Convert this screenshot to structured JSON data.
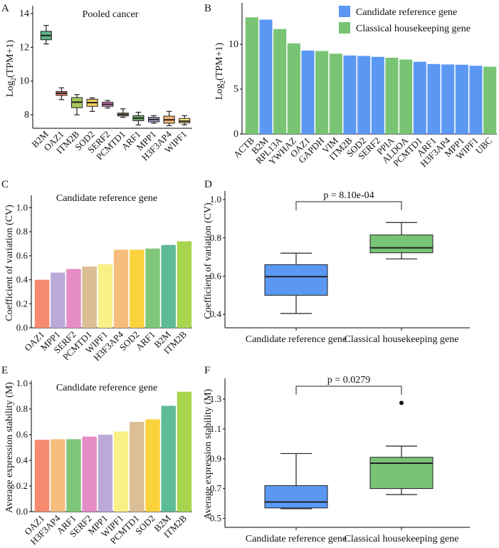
{
  "chart_data": [
    {
      "panel": "A",
      "type": "box",
      "title": "Pooled cancer",
      "ylabel_base": "Log",
      "ylabel_sub": "2",
      "ylabel_tail": "(TPM+1)",
      "ylim": [
        7.2,
        14.3
      ],
      "yticks": [
        8,
        10,
        12,
        14
      ],
      "boxes": [
        {
          "name": "B2M",
          "color": "#5CB287",
          "whisker_low": 12.2,
          "q1": 12.45,
          "median": 12.7,
          "q3": 12.95,
          "whisker_high": 13.3
        },
        {
          "name": "OAZ1",
          "color": "#F47E6E",
          "whisker_low": 8.9,
          "q1": 9.15,
          "median": 9.28,
          "q3": 9.38,
          "whisker_high": 9.6
        },
        {
          "name": "ITM2B",
          "color": "#A4C95A",
          "whisker_low": 8.0,
          "q1": 8.42,
          "median": 8.75,
          "q3": 9.02,
          "whisker_high": 9.2
        },
        {
          "name": "SOD2",
          "color": "#F5D05C",
          "whisker_low": 8.2,
          "q1": 8.5,
          "median": 8.72,
          "q3": 8.92,
          "whisker_high": 9.0
        },
        {
          "name": "SERF2",
          "color": "#E27FC1",
          "whisker_low": 8.4,
          "q1": 8.5,
          "median": 8.62,
          "q3": 8.75,
          "whisker_high": 8.85
        },
        {
          "name": "PCMTD1",
          "color": "#D4B58C",
          "whisker_low": 7.85,
          "q1": 7.93,
          "median": 8.02,
          "q3": 8.1,
          "whisker_high": 8.35
        },
        {
          "name": "ARF1",
          "color": "#73B36B",
          "whisker_low": 7.4,
          "q1": 7.65,
          "median": 7.8,
          "q3": 7.95,
          "whisker_high": 8.15
        },
        {
          "name": "MPP1",
          "color": "#B3A5D6",
          "whisker_low": 7.5,
          "q1": 7.58,
          "median": 7.72,
          "q3": 7.85,
          "whisker_high": 7.95
        },
        {
          "name": "H3F3AP4",
          "color": "#F5B56F",
          "whisker_low": 7.35,
          "q1": 7.5,
          "median": 7.7,
          "q3": 7.92,
          "whisker_high": 8.2
        },
        {
          "name": "WIPF1",
          "color": "#F7E77A",
          "whisker_low": 7.4,
          "q1": 7.52,
          "median": 7.62,
          "q3": 7.78,
          "whisker_high": 7.95
        }
      ]
    },
    {
      "panel": "B",
      "type": "bar",
      "ylabel_base": "Log",
      "ylabel_sub": "2",
      "ylabel_tail": "(TPM+1)",
      "ylim": [
        0,
        14.3
      ],
      "yticks": [
        0,
        5,
        10
      ],
      "legend": [
        {
          "label": "Candidate reference gene",
          "color": "#5B98F4"
        },
        {
          "label": "Classical housekeeping gene",
          "color": "#78C474"
        }
      ],
      "bars": [
        {
          "name": "ACTB",
          "value": 13.0,
          "group": 1
        },
        {
          "name": "B2M",
          "value": 12.75,
          "group": 0
        },
        {
          "name": "RPL13A",
          "value": 11.7,
          "group": 1
        },
        {
          "name": "YWHAZ",
          "value": 10.1,
          "group": 1
        },
        {
          "name": "OAZ1",
          "value": 9.3,
          "group": 0
        },
        {
          "name": "GAPDH",
          "value": 9.25,
          "group": 1
        },
        {
          "name": "VIM",
          "value": 8.95,
          "group": 1
        },
        {
          "name": "ITM2B",
          "value": 8.75,
          "group": 0
        },
        {
          "name": "SOD2",
          "value": 8.7,
          "group": 0
        },
        {
          "name": "SERF2",
          "value": 8.6,
          "group": 0
        },
        {
          "name": "PPIA",
          "value": 8.5,
          "group": 1
        },
        {
          "name": "ALDOA",
          "value": 8.3,
          "group": 1
        },
        {
          "name": "PCMTD1",
          "value": 8.05,
          "group": 0
        },
        {
          "name": "ARF1",
          "value": 7.8,
          "group": 0
        },
        {
          "name": "H3F3AP4",
          "value": 7.75,
          "group": 0
        },
        {
          "name": "MPP1",
          "value": 7.72,
          "group": 0
        },
        {
          "name": "WIPF1",
          "value": 7.6,
          "group": 0
        },
        {
          "name": "UBC",
          "value": 7.5,
          "group": 1
        }
      ]
    },
    {
      "panel": "C",
      "type": "bar",
      "title": "Candidate reference gene",
      "ylabel": "Coefficient of variation (CV)",
      "ylim": [
        0,
        1.08
      ],
      "yticks": [
        0.0,
        0.2,
        0.4,
        0.6,
        0.8,
        1.0
      ],
      "bars": [
        {
          "name": "OAZ1",
          "value": 0.4,
          "color": "#F58A6E"
        },
        {
          "name": "MPP1",
          "value": 0.46,
          "color": "#BBA9D9"
        },
        {
          "name": "SERF2",
          "value": 0.49,
          "color": "#E68CC6"
        },
        {
          "name": "PCMTD1",
          "value": 0.51,
          "color": "#DCBE95"
        },
        {
          "name": "WIPF1",
          "value": 0.53,
          "color": "#F9F187"
        },
        {
          "name": "H3F3AP4",
          "value": 0.65,
          "color": "#F7BD7D"
        },
        {
          "name": "SOD2",
          "value": 0.65,
          "color": "#FAD23C"
        },
        {
          "name": "ARF1",
          "value": 0.66,
          "color": "#7FC679"
        },
        {
          "name": "B2M",
          "value": 0.69,
          "color": "#5DBB95"
        },
        {
          "name": "ITM2B",
          "value": 0.72,
          "color": "#A8D54D"
        }
      ]
    },
    {
      "panel": "D",
      "type": "box",
      "ylabel": "Coefficient of variation (CV)",
      "ylim": [
        0.33,
        1.03
      ],
      "yticks": [
        0.4,
        0.6,
        0.8,
        1.0
      ],
      "pvalue": "p = 8.10e-04",
      "boxes": [
        {
          "name": "Candidate reference gene",
          "color": "#5B98F4",
          "whisker_low": 0.405,
          "q1": 0.5,
          "median": 0.597,
          "q3": 0.66,
          "whisker_high": 0.72
        },
        {
          "name": "Classical housekeeping gene",
          "color": "#78C474",
          "whisker_low": 0.69,
          "q1": 0.722,
          "median": 0.748,
          "q3": 0.815,
          "whisker_high": 0.88
        }
      ]
    },
    {
      "panel": "E",
      "type": "bar",
      "title": "Candidate reference gene",
      "ylabel": "Average expression stability (M)",
      "ylim": [
        0,
        1.0
      ],
      "yticks": [
        0.0,
        0.2,
        0.4,
        0.6,
        0.8,
        1.0
      ],
      "bars": [
        {
          "name": "OAZ1",
          "value": 0.56,
          "color": "#F58A6E"
        },
        {
          "name": "H3F3AP4",
          "value": 0.565,
          "color": "#F7BD7D"
        },
        {
          "name": "ARF1",
          "value": 0.565,
          "color": "#7FC679"
        },
        {
          "name": "SERF2",
          "value": 0.585,
          "color": "#E68CC6"
        },
        {
          "name": "MPP1",
          "value": 0.6,
          "color": "#BBA9D9"
        },
        {
          "name": "WIPF1",
          "value": 0.625,
          "color": "#F9F187"
        },
        {
          "name": "PCMTD1",
          "value": 0.7,
          "color": "#DCBE95"
        },
        {
          "name": "SOD2",
          "value": 0.72,
          "color": "#FAD23C"
        },
        {
          "name": "B2M",
          "value": 0.825,
          "color": "#5DBB95"
        },
        {
          "name": "ITM2B",
          "value": 0.935,
          "color": "#A8D54D"
        }
      ]
    },
    {
      "panel": "F",
      "type": "box",
      "ylabel": "Average expression stability (M)",
      "ylim": [
        0.44,
        1.42
      ],
      "yticks": [
        0.5,
        0.7,
        0.9,
        1.1,
        1.3
      ],
      "pvalue": "p = 0.0279",
      "boxes": [
        {
          "name": "Candidate reference gene",
          "color": "#5B98F4",
          "whisker_low": 0.565,
          "q1": 0.57,
          "median": 0.61,
          "q3": 0.72,
          "whisker_high": 0.935
        },
        {
          "name": "Classical housekeeping gene",
          "color": "#78C474",
          "whisker_low": 0.66,
          "q1": 0.7,
          "median": 0.87,
          "q3": 0.91,
          "whisker_high": 0.985,
          "outliers": [
            1.275
          ]
        }
      ]
    }
  ]
}
